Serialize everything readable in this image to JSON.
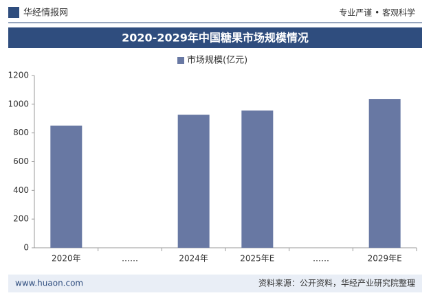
{
  "header": {
    "brand": "华经情报网",
    "slogan": "专业严谨 • 客观科学"
  },
  "chart_data": {
    "type": "bar",
    "title": "2020-2029年中国糖果市场规模情况",
    "categories": [
      "2020年",
      "……",
      "2024年",
      "2025年E",
      "……",
      "2029年E"
    ],
    "series": [
      {
        "name": "市场规模(亿元)",
        "color": "#6878a3",
        "values": [
          851,
          null,
          927,
          956,
          null,
          1037
        ]
      }
    ],
    "ylim": [
      0,
      1200
    ],
    "yticks": [
      0,
      200,
      400,
      600,
      800,
      1000,
      1200
    ],
    "legend": "top"
  },
  "footer": {
    "website": "www.huaon.com",
    "source": "资料来源：公开资料，华经产业研究院整理"
  }
}
